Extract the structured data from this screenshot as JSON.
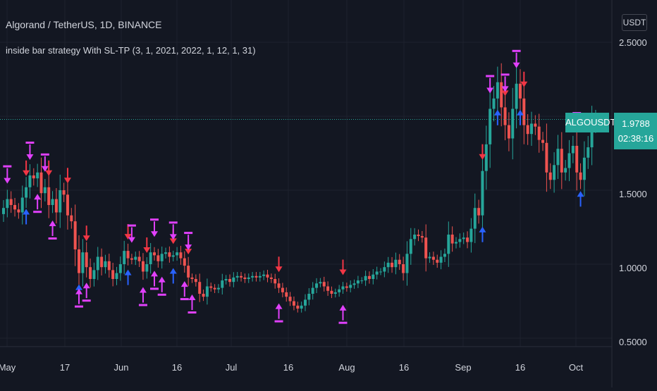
{
  "chart_header": {
    "title": "Algorand / TetherUS, 1D, BINANCE",
    "indicator": "inside bar strategy  With SL-TP  (3, 1, 2021, 2022, 1, 12, 1, 31)",
    "currency": "USDT"
  },
  "price_labels": {
    "symbol": "ALGOUSDT",
    "last_price": "1.9788",
    "countdown": "02:38:16"
  },
  "colors": {
    "background": "#131722",
    "up_candle": "#26a69a",
    "down_candle": "#ef5350",
    "sell_arrow": "#f23645",
    "buy_arrow": "#2962ff",
    "strategy_marker": "#e040fb",
    "last_price_line": "#26a69a"
  },
  "chart_data": {
    "type": "candlestick",
    "title": "Algorand / TetherUS, 1D, BINANCE",
    "y_axis": {
      "ticks": [
        "2.5000",
        "1.5000",
        "1.0000",
        "0.5000"
      ],
      "range": [
        0.45,
        2.85
      ],
      "grid": true
    },
    "x_axis": {
      "ticks": [
        "May",
        "17",
        "Jun",
        "16",
        "Jul",
        "16",
        "Aug",
        "16",
        "Sep",
        "16",
        "Oct"
      ],
      "grid": true
    },
    "last_price": 1.9788,
    "dates": [
      "2021-05-01",
      "2021-10-05"
    ],
    "close": [
      1.38,
      1.44,
      1.4,
      1.37,
      1.35,
      1.45,
      1.52,
      1.6,
      1.58,
      1.62,
      1.48,
      1.52,
      1.4,
      1.44,
      1.35,
      1.5,
      1.47,
      1.33,
      1.29,
      1.1,
      0.94,
      1.08,
      0.98,
      0.9,
      0.96,
      1.05,
      0.98,
      1.02,
      0.96,
      0.9,
      0.94,
      1.0,
      1.09,
      1.04,
      1.03,
      1.05,
      1.02,
      0.95,
      1.0,
      1.08,
      1.06,
      1.02,
      1.07,
      1.08,
      1.05,
      1.06,
      1.08,
      1.04,
      0.99,
      0.91,
      0.9,
      0.88,
      0.8,
      0.78,
      0.85,
      0.84,
      0.83,
      0.84,
      0.89,
      0.9,
      0.88,
      0.91,
      0.92,
      0.91,
      0.9,
      0.91,
      0.92,
      0.91,
      0.92,
      0.93,
      0.91,
      0.9,
      0.87,
      0.84,
      0.81,
      0.78,
      0.75,
      0.72,
      0.7,
      0.72,
      0.76,
      0.8,
      0.84,
      0.87,
      0.88,
      0.85,
      0.82,
      0.8,
      0.81,
      0.83,
      0.85,
      0.84,
      0.86,
      0.87,
      0.89,
      0.89,
      0.92,
      0.9,
      0.93,
      0.95,
      0.95,
      0.98,
      1.01,
      0.98,
      1.03,
      1.0,
      0.94,
      1.07,
      1.17,
      1.2,
      1.19,
      1.18,
      1.04,
      1.05,
      1.03,
      1.01,
      1.05,
      1.07,
      1.2,
      1.14,
      1.15,
      1.17,
      1.18,
      1.15,
      1.24,
      1.38,
      1.33,
      1.63,
      1.81,
      2.05,
      2.12,
      2.23,
      2.06,
      1.94,
      1.85,
      2.05,
      2.22,
      2.12,
      1.94,
      1.88,
      1.95,
      1.93,
      1.84,
      1.82,
      1.62,
      1.57,
      1.67,
      1.78,
      1.62,
      1.65,
      1.75,
      1.8,
      1.62,
      1.57,
      1.72,
      1.79,
      1.95,
      1.98
    ]
  }
}
